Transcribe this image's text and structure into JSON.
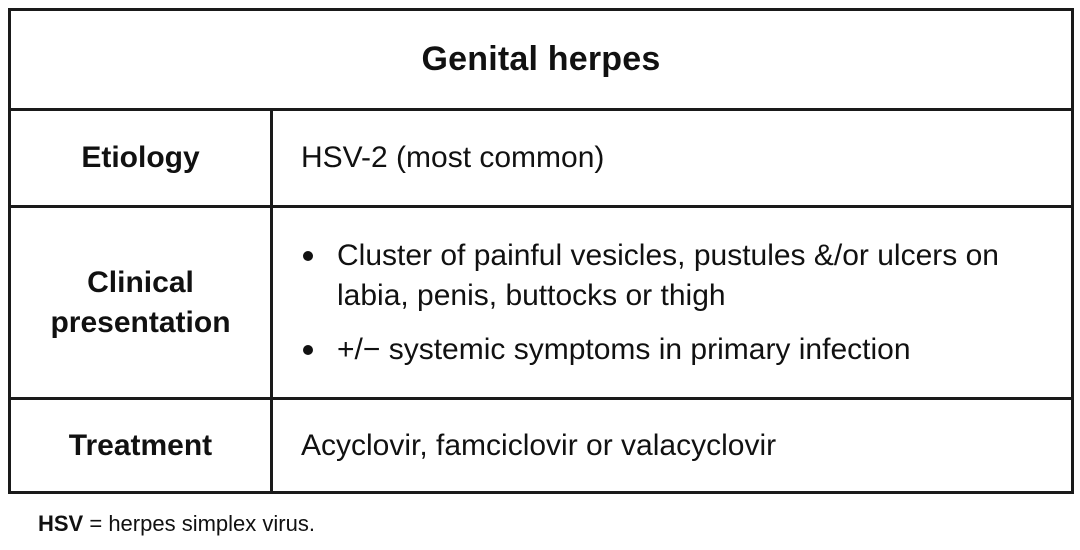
{
  "table": {
    "title": "Genital herpes",
    "rows": [
      {
        "label": "Etiology",
        "value": "HSV-2 (most common)"
      },
      {
        "label_lines": [
          "Clinical",
          "presentation"
        ],
        "bullets": [
          "Cluster of painful vesicles, pustules &/or ulcers on labia, penis, buttocks or thigh",
          "+/− systemic symptoms in primary infection"
        ]
      },
      {
        "label": "Treatment",
        "value": "Acyclovir, famciclovir or valacyclovir"
      }
    ]
  },
  "footnote": {
    "abbr": "HSV",
    "definition": " = herpes simplex virus."
  }
}
